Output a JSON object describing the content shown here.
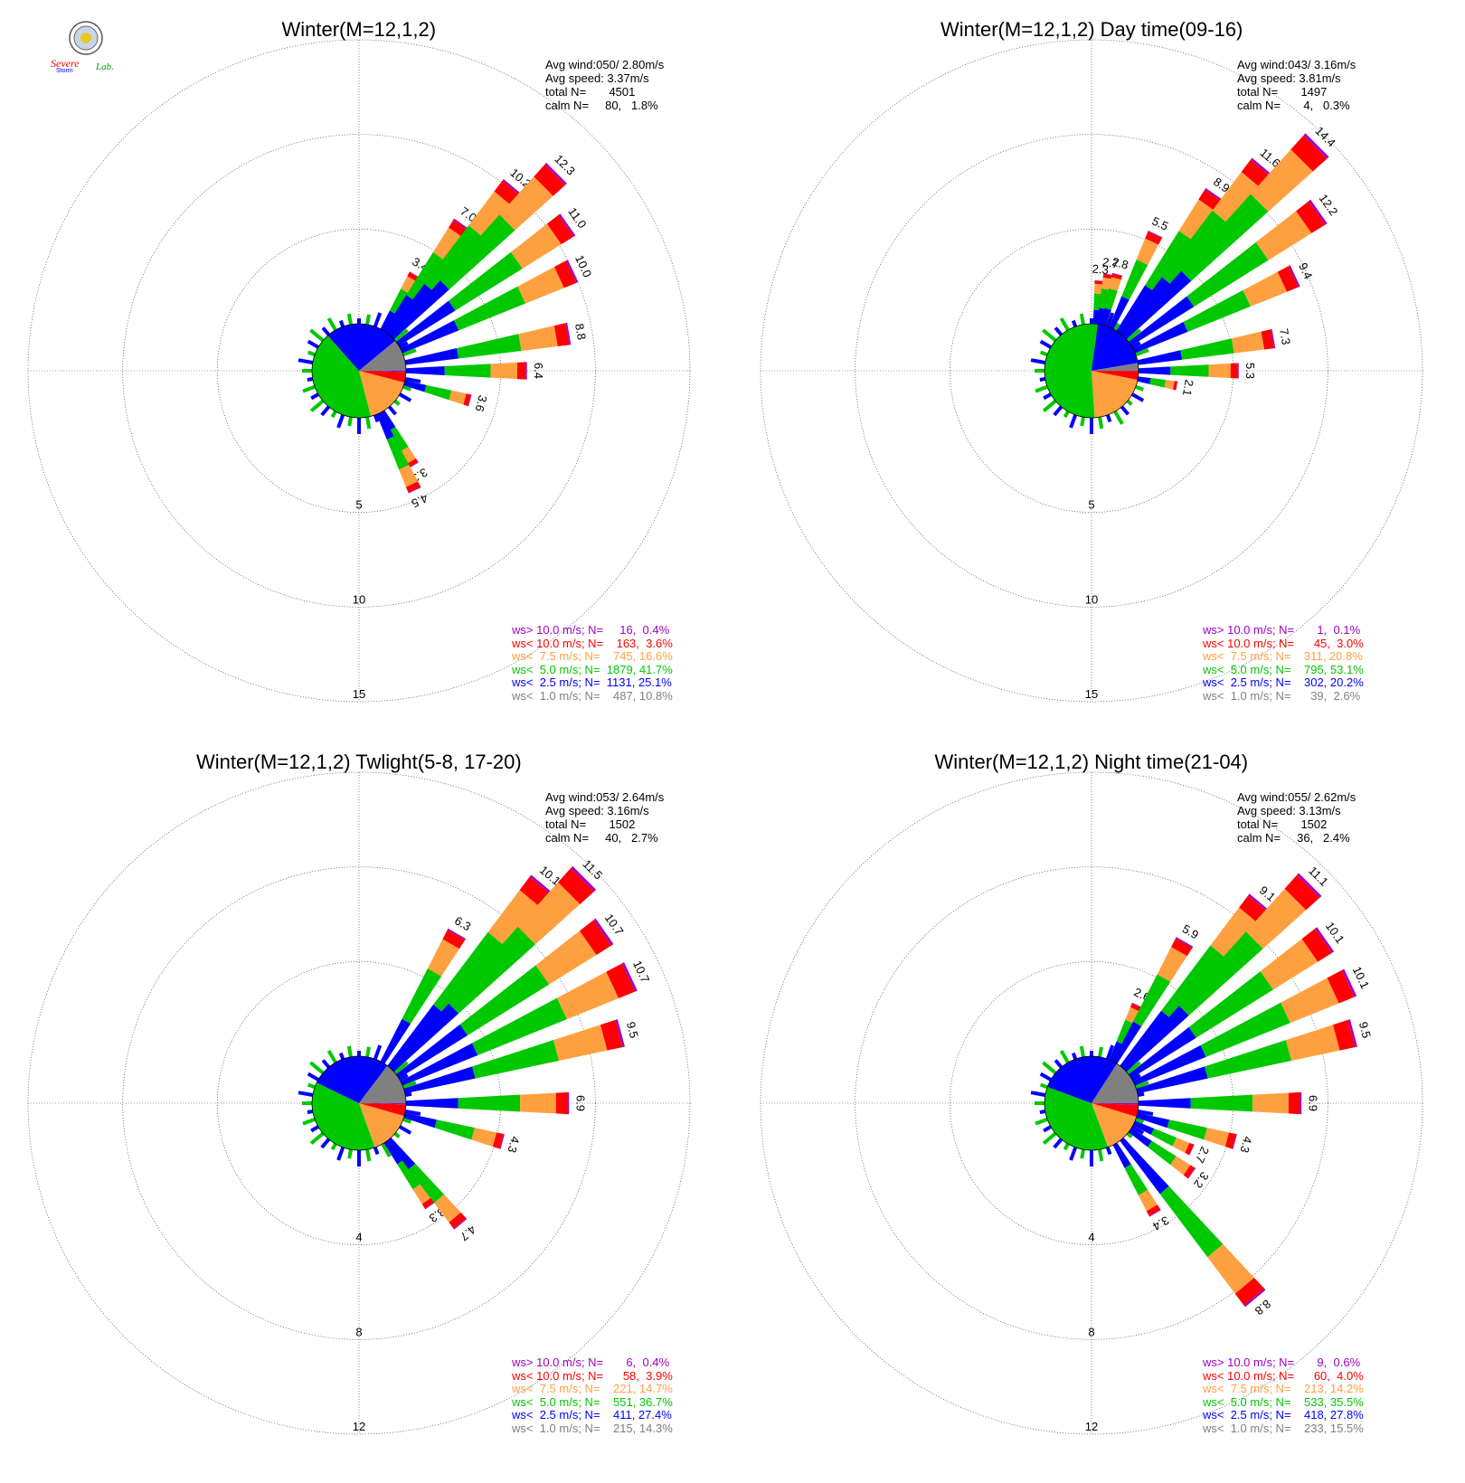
{
  "colors": {
    "gt10": "#a000c8",
    "lt10": "#ff0000",
    "lt75": "#ffa040",
    "lt5": "#00c800",
    "lt25": "#0000ff",
    "lt1": "#808080"
  },
  "logo": {
    "text_top": "Severe",
    "text_mid": "Storm",
    "text_right": "Lab."
  },
  "chart_data": [
    {
      "type": "wind-rose",
      "title": "Winter(M=12,1,2)",
      "stats": [
        "Avg wind:050/ 2.80m/s",
        "Avg speed: 3.37m/s",
        "total N=       4501",
        "calm N=     80,   1.8%"
      ],
      "ring_labels": [
        "5",
        "10",
        "15"
      ],
      "rmax": 15,
      "legend": [
        "ws> 10.0 m/s; N=     16,  0.4%",
        "ws< 10.0 m/s; N=    163,  3.6%",
        "ws<  7.5 m/s; N=    745, 16.6%",
        "ws<  5.0 m/s; N=  1879, 41.7%",
        "ws<  2.5 m/s; N=  1131, 25.1%",
        "ws<  1.0 m/s; N=    487, 10.8%"
      ],
      "pie": [
        0.4,
        3.6,
        16.6,
        41.7,
        25.1,
        10.8
      ],
      "bars": [
        {
          "dir": 30,
          "v": 3.4,
          "label": "3.4"
        },
        {
          "dir": 35,
          "v": 7.0,
          "label": "7.0"
        },
        {
          "dir": 40,
          "v": 10.2,
          "label": "10.2"
        },
        {
          "dir": 45,
          "v": 12.3,
          "label": "12.3"
        },
        {
          "dir": 55,
          "v": 11.0,
          "label": "11.0"
        },
        {
          "dir": 65,
          "v": 10.0,
          "label": "10.0"
        },
        {
          "dir": 80,
          "v": 8.8,
          "label": "8.8"
        },
        {
          "dir": 90,
          "v": 6.4,
          "label": "6.4"
        },
        {
          "dir": 105,
          "v": 3.6,
          "label": "3.6"
        },
        {
          "dir": 150,
          "v": 3.3,
          "label": "3.3"
        },
        {
          "dir": 155,
          "v": 4.5,
          "label": "4.5"
        }
      ]
    },
    {
      "type": "wind-rose",
      "title": "Winter(M=12,1,2) Day time(09-16)",
      "stats": [
        "Avg wind:043/ 3.16m/s",
        "Avg speed: 3.81m/s",
        "total N=       1497",
        "calm N=       4,   0.3%"
      ],
      "ring_labels": [
        "5",
        "10",
        "15"
      ],
      "rmax": 15,
      "legend": [
        "ws> 10.0 m/s; N=       1,  0.1%",
        "ws< 10.0 m/s; N=      45,  3.0%",
        "ws<  7.5 m/s; N=    311, 20.8%",
        "ws<  5.0 m/s; N=    795, 53.1%",
        "ws<  2.5 m/s; N=    302, 20.2%",
        "ws<  1.0 m/s; N=      39,  2.6%"
      ],
      "pie": [
        0.1,
        3.0,
        20.8,
        53.1,
        20.2,
        2.6
      ],
      "bars": [
        {
          "dir": 5,
          "v": 2.3,
          "label": "2.3"
        },
        {
          "dir": 10,
          "v": 2.7,
          "label": "2.7"
        },
        {
          "dir": 15,
          "v": 2.8,
          "label": "2.8"
        },
        {
          "dir": 25,
          "v": 5.5,
          "label": "5.5"
        },
        {
          "dir": 35,
          "v": 8.9,
          "label": "8.9"
        },
        {
          "dir": 40,
          "v": 11.6,
          "label": "11.6"
        },
        {
          "dir": 45,
          "v": 14.4,
          "label": "14.4"
        },
        {
          "dir": 55,
          "v": 12.2,
          "label": "12.2"
        },
        {
          "dir": 65,
          "v": 9.4,
          "label": "9.4"
        },
        {
          "dir": 80,
          "v": 7.3,
          "label": "7.3"
        },
        {
          "dir": 90,
          "v": 5.3,
          "label": "5.3"
        },
        {
          "dir": 100,
          "v": 2.1,
          "label": "2.1"
        }
      ]
    },
    {
      "type": "wind-rose",
      "title": "Winter(M=12,1,2) Twlight(5-8, 17-20)",
      "stats": [
        "Avg wind:053/ 2.64m/s",
        "Avg speed: 3.16m/s",
        "total N=       1502",
        "calm N=     40,   2.7%"
      ],
      "ring_labels": [
        "4",
        "8",
        "12"
      ],
      "rmax": 12,
      "legend": [
        "ws> 10.0 m/s; N=       6,  0.4%",
        "ws< 10.0 m/s; N=      58,  3.9%",
        "ws<  7.5 m/s; N=    221, 14.7%",
        "ws<  5.0 m/s; N=    551, 36.7%",
        "ws<  2.5 m/s; N=    411, 27.4%",
        "ws<  1.0 m/s; N=    215, 14.3%"
      ],
      "pie": [
        0.4,
        3.9,
        14.7,
        36.7,
        27.4,
        14.3
      ],
      "bars": [
        {
          "dir": 30,
          "v": 6.3,
          "label": "6.3"
        },
        {
          "dir": 40,
          "v": 10.1,
          "label": "10.1"
        },
        {
          "dir": 45,
          "v": 11.5,
          "label": "11.5"
        },
        {
          "dir": 55,
          "v": 10.7,
          "label": "10.7"
        },
        {
          "dir": 65,
          "v": 10.7,
          "label": "10.7"
        },
        {
          "dir": 75,
          "v": 9.5,
          "label": "9.5"
        },
        {
          "dir": 90,
          "v": 6.9,
          "label": "6.9"
        },
        {
          "dir": 105,
          "v": 4.3,
          "label": "4.3"
        },
        {
          "dir": 145,
          "v": 3.3,
          "label": "3.3"
        },
        {
          "dir": 140,
          "v": 4.7,
          "label": "4.7"
        }
      ]
    },
    {
      "type": "wind-rose",
      "title": "Winter(M=12,1,2) Night time(21-04)",
      "stats": [
        "Avg wind:055/ 2.62m/s",
        "Avg speed: 3.13m/s",
        "total N=       1502",
        "calm N=     36,   2.4%"
      ],
      "ring_labels": [
        "4",
        "8",
        "12"
      ],
      "rmax": 12,
      "legend": [
        "ws> 10.0 m/s; N=       9,  0.6%",
        "ws< 10.0 m/s; N=      60,  4.0%",
        "ws<  7.5 m/s; N=    213, 14.2%",
        "ws<  5.0 m/s; N=    533, 35.5%",
        "ws<  2.5 m/s; N=    418, 27.8%",
        "ws<  1.0 m/s; N=    233, 15.5%"
      ],
      "pie": [
        0.6,
        4.0,
        14.2,
        35.5,
        27.8,
        15.5
      ],
      "bars": [
        {
          "dir": 25,
          "v": 2.6,
          "label": "2.6"
        },
        {
          "dir": 30,
          "v": 5.9,
          "label": "5.9"
        },
        {
          "dir": 40,
          "v": 9.1,
          "label": "9.1"
        },
        {
          "dir": 45,
          "v": 11.1,
          "label": "11.1"
        },
        {
          "dir": 55,
          "v": 10.1,
          "label": "10.1"
        },
        {
          "dir": 65,
          "v": 10.1,
          "label": "10.1"
        },
        {
          "dir": 75,
          "v": 9.5,
          "label": "9.5"
        },
        {
          "dir": 90,
          "v": 6.9,
          "label": "6.9"
        },
        {
          "dir": 105,
          "v": 4.3,
          "label": "4.3"
        },
        {
          "dir": 115,
          "v": 2.7,
          "label": "2.7"
        },
        {
          "dir": 125,
          "v": 3.2,
          "label": "3.2"
        },
        {
          "dir": 150,
          "v": 3.4,
          "label": "3.4"
        },
        {
          "dir": 140,
          "v": 8.8,
          "label": "8.8"
        }
      ]
    }
  ]
}
